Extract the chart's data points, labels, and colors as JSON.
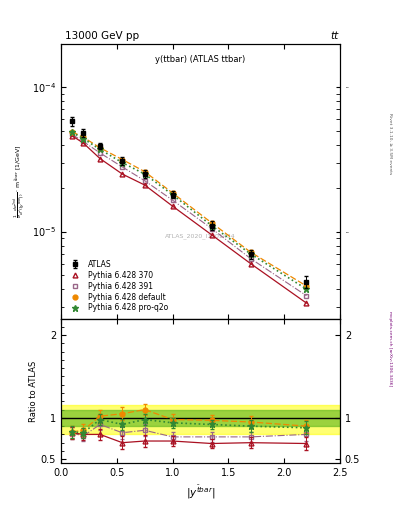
{
  "title_top": "13000 GeV pp",
  "title_right": "tt",
  "plot_title": "y(ttbar) (ATLAS ttbar)",
  "watermark": "ATLAS_2020_I1801434",
  "rivet_label": "Rivet 3.1.10, ≥ 3.5M events",
  "mcplots_label": "mcplots.cern.ch [arXiv:1306.3436]",
  "x_data": [
    0.1,
    0.2,
    0.35,
    0.55,
    0.75,
    1.0,
    1.35,
    1.7,
    2.2
  ],
  "atlas_y": [
    5.8e-05,
    4.8e-05,
    3.9e-05,
    3.1e-05,
    2.5e-05,
    1.8e-05,
    1.1e-05,
    7e-06,
    4.5e-06
  ],
  "atlas_yerr": [
    4e-06,
    3e-06,
    2e-06,
    2e-06,
    1.5e-06,
    1e-06,
    8e-07,
    5e-07,
    4e-07
  ],
  "py370_y": [
    4.6e-05,
    4.1e-05,
    3.2e-05,
    2.5e-05,
    2.1e-05,
    1.5e-05,
    9.5e-06,
    6e-06,
    3.2e-06
  ],
  "py391_y": [
    4.7e-05,
    4.2e-05,
    3.5e-05,
    2.8e-05,
    2.25e-05,
    1.65e-05,
    1.05e-05,
    6.5e-06,
    3.6e-06
  ],
  "pydef_y": [
    4.9e-05,
    4.5e-05,
    3.8e-05,
    3.15e-05,
    2.6e-05,
    1.85e-05,
    1.15e-05,
    7.2e-06,
    4.2e-06
  ],
  "pyproq2o_y": [
    4.85e-05,
    4.4e-05,
    3.7e-05,
    3e-05,
    2.5e-05,
    1.8e-05,
    1.1e-05,
    7e-06,
    4e-06
  ],
  "ratio_py370": [
    0.82,
    0.8,
    0.8,
    0.7,
    0.72,
    0.72,
    0.69,
    0.7,
    0.69
  ],
  "ratio_py391": [
    0.82,
    0.78,
    0.92,
    0.82,
    0.85,
    0.77,
    0.77,
    0.77,
    0.8
  ],
  "ratio_pydef": [
    0.83,
    0.85,
    1.02,
    1.05,
    1.1,
    0.98,
    0.97,
    0.95,
    0.9
  ],
  "ratio_pyproq2o": [
    0.83,
    0.82,
    0.98,
    0.92,
    0.98,
    0.94,
    0.92,
    0.9,
    0.88
  ],
  "ratio_py370_err": [
    0.07,
    0.07,
    0.07,
    0.08,
    0.07,
    0.06,
    0.06,
    0.07,
    0.08
  ],
  "ratio_py391_err": [
    0.07,
    0.06,
    0.07,
    0.07,
    0.07,
    0.06,
    0.06,
    0.06,
    0.08
  ],
  "ratio_pydef_err": [
    0.07,
    0.07,
    0.08,
    0.08,
    0.07,
    0.07,
    0.07,
    0.07,
    0.08
  ],
  "ratio_pyproq2o_err": [
    0.07,
    0.06,
    0.07,
    0.07,
    0.07,
    0.06,
    0.06,
    0.07,
    0.08
  ],
  "green_band_lo": 0.9,
  "green_band_hi": 1.1,
  "yellow_band_lo": 0.8,
  "yellow_band_hi": 1.15,
  "color_atlas": "#000000",
  "color_py370": "#aa1122",
  "color_py391": "#996688",
  "color_pydef": "#ee8800",
  "color_pyproq2o": "#338833",
  "ylim_main": [
    2.5e-06,
    0.0002
  ],
  "ylim_ratio": [
    0.45,
    2.2
  ],
  "xlim": [
    0.0,
    2.5
  ]
}
